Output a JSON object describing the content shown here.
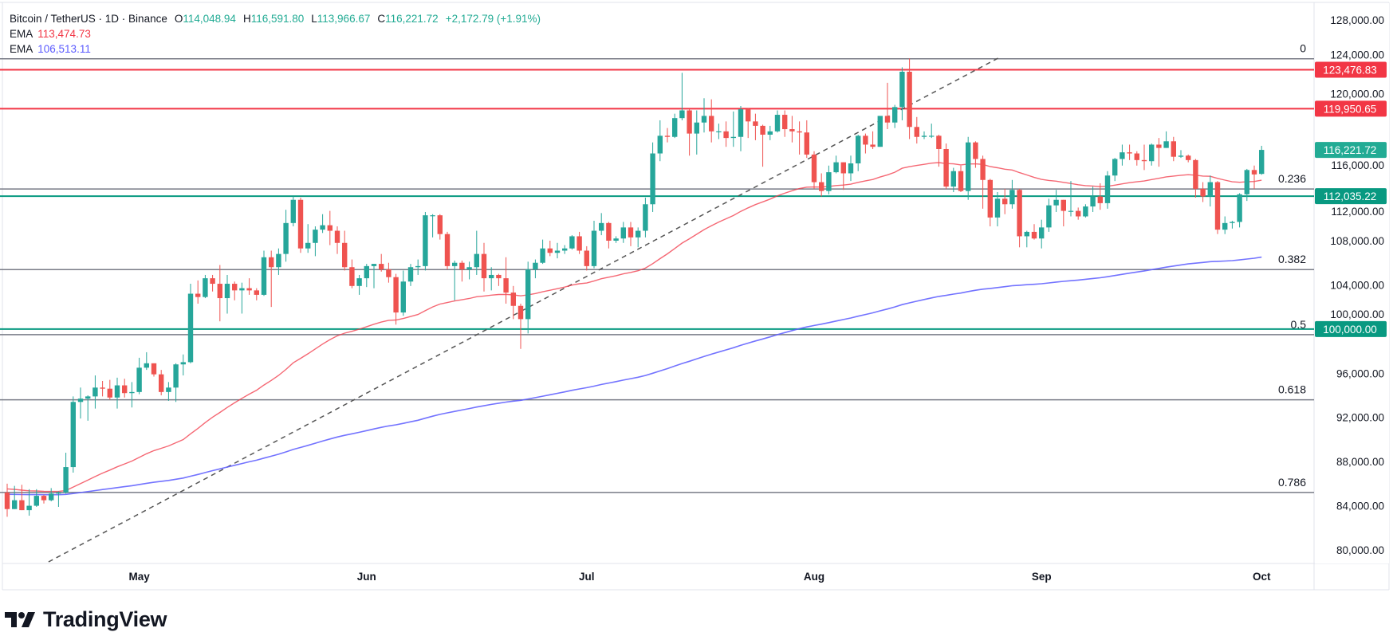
{
  "header": {
    "symbol": "Bitcoin / TetherUS · 1D · Binance",
    "o_label": "O",
    "o": "114,048.94",
    "h_label": "H",
    "h": "116,591.80",
    "l_label": "L",
    "l": "113,966.67",
    "c_label": "C",
    "c": "116,221.72",
    "change": "+2,172.79 (+1.91%)"
  },
  "indicators": [
    {
      "label": "EMA",
      "value": "113,474.73",
      "color": "#f23645"
    },
    {
      "label": "EMA",
      "value": "106,513.11",
      "color": "#5b5bff"
    }
  ],
  "colors": {
    "up": "#26a69a",
    "down": "#ef5350",
    "value_text": "#22ab94",
    "fib": "#787b86",
    "trend": "#555555"
  },
  "logo": {
    "text": "TradingView"
  },
  "price_axis": {
    "ticks": [
      "128,000.00",
      "124,000.00",
      "120,000.00",
      "116,000.00",
      "112,000.00",
      "108,000.00",
      "104,000.00",
      "100,000.00",
      "96,000.00",
      "92,000.00",
      "88,000.00",
      "84,000.00",
      "80,000.00"
    ]
  },
  "time_axis": {
    "labels": [
      {
        "label": "May",
        "date": "May 1"
      },
      {
        "label": "Jun",
        "date": "Jun 1"
      },
      {
        "label": "Jul",
        "date": "Jul 1"
      },
      {
        "label": "Aug",
        "date": "Aug 1"
      },
      {
        "label": "Sep",
        "date": "Sep 1"
      },
      {
        "label": "Oct",
        "date": "Oct 1"
      }
    ]
  },
  "horizontal_lines": [
    {
      "price": 123476.83,
      "label": "123,476.83",
      "color": "#f23645"
    },
    {
      "price": 119950.65,
      "label": "119,950.65",
      "color": "#f23645"
    },
    {
      "price": 112035.22,
      "label": "112,035.22",
      "color": "#089981"
    },
    {
      "price": 100000,
      "label": "100,000.00",
      "color": "#089981"
    }
  ],
  "last_price": {
    "price": 116221.72,
    "label": "116,221.72",
    "color": "#22ab94"
  },
  "fibonacci": {
    "high": 124474,
    "low": 74508,
    "levels": [
      {
        "level": 0,
        "label": "0"
      },
      {
        "level": 0.236,
        "label": "0.236"
      },
      {
        "level": 0.382,
        "label": "0.382"
      },
      {
        "level": 0.5,
        "label": "0.5"
      },
      {
        "level": 0.618,
        "label": "0.618"
      },
      {
        "level": 0.786,
        "label": "0.786"
      }
    ]
  },
  "trend_line": {
    "from": [
      "Apr 19",
      78900
    ],
    "to": [
      "Aug 26",
      124500
    ],
    "style": "dashed"
  },
  "chart_data": {
    "type": "candlestick",
    "ylim": [
      79000,
      129000
    ],
    "grid": false,
    "columns": [
      "date",
      "open",
      "high",
      "low",
      "close"
    ],
    "ema_series": [
      {
        "name": "EMA",
        "last": 113474.73,
        "color": "#f23645"
      },
      {
        "name": "EMA",
        "last": 106513.11,
        "color": "#5b5bff"
      }
    ],
    "candles": [
      [
        "Apr 13",
        85200,
        86000,
        83000,
        83700
      ],
      [
        "Apr 14",
        83700,
        85800,
        83700,
        84500
      ],
      [
        "Apr 15",
        84500,
        85900,
        83600,
        83600
      ],
      [
        "Apr 16",
        83600,
        85500,
        83100,
        84000
      ],
      [
        "Apr 17",
        84000,
        85500,
        83900,
        84900
      ],
      [
        "Apr 18",
        84900,
        85000,
        84200,
        84500
      ],
      [
        "Apr 19",
        84500,
        85600,
        84400,
        85100
      ],
      [
        "Apr 20",
        85100,
        85300,
        83900,
        85200
      ],
      [
        "Apr 21",
        85200,
        88800,
        85100,
        87500
      ],
      [
        "Apr 22",
        87500,
        93900,
        87000,
        93400
      ],
      [
        "Apr 23",
        93400,
        94700,
        91900,
        93700
      ],
      [
        "Apr 24",
        93700,
        94000,
        91700,
        93900
      ],
      [
        "Apr 25",
        93900,
        95800,
        92800,
        94700
      ],
      [
        "Apr 26",
        94700,
        95300,
        93900,
        94600
      ],
      [
        "Apr 27",
        94600,
        95400,
        93600,
        93800
      ],
      [
        "Apr 28",
        93800,
        95600,
        92800,
        94900
      ],
      [
        "Apr 29",
        94900,
        95500,
        93800,
        94200
      ],
      [
        "Apr 30",
        94200,
        95200,
        92900,
        94300
      ],
      [
        "May 1",
        94300,
        97400,
        94100,
        96500
      ],
      [
        "May 2",
        96500,
        97900,
        96300,
        96900
      ],
      [
        "May 3",
        96900,
        96900,
        95700,
        95900
      ],
      [
        "May 4",
        95900,
        96300,
        94000,
        94300
      ],
      [
        "May 5",
        94300,
        95200,
        93500,
        94700
      ],
      [
        "May 6",
        94700,
        96900,
        93400,
        96800
      ],
      [
        "May 7",
        96800,
        97700,
        95800,
        97000
      ],
      [
        "May 8",
        97000,
        104100,
        96900,
        103200
      ],
      [
        "May 9",
        103200,
        104400,
        102300,
        102900
      ],
      [
        "May 10",
        102900,
        104900,
        102800,
        104600
      ],
      [
        "May 11",
        104600,
        104900,
        103400,
        104100
      ],
      [
        "May 12",
        104100,
        105800,
        100700,
        102800
      ],
      [
        "May 13",
        102800,
        104900,
        101400,
        104100
      ],
      [
        "May 14",
        104100,
        104300,
        102600,
        103500
      ],
      [
        "May 15",
        103500,
        104200,
        101400,
        103700
      ],
      [
        "May 16",
        103700,
        104600,
        103100,
        103500
      ],
      [
        "May 17",
        103500,
        103700,
        102600,
        103100
      ],
      [
        "May 18",
        103100,
        107100,
        103000,
        106500
      ],
      [
        "May 19",
        106500,
        107100,
        102000,
        105600
      ],
      [
        "May 20",
        105600,
        107300,
        104900,
        106800
      ],
      [
        "May 21",
        106800,
        110800,
        106100,
        109600
      ],
      [
        "May 22",
        109600,
        112000,
        109300,
        111700
      ],
      [
        "May 23",
        111700,
        111900,
        106900,
        107300
      ],
      [
        "May 24",
        107300,
        109500,
        106900,
        107800
      ],
      [
        "May 25",
        107800,
        109300,
        106600,
        109000
      ],
      [
        "May 26",
        109000,
        110400,
        108700,
        109400
      ],
      [
        "May 27",
        109400,
        110700,
        107600,
        108900
      ],
      [
        "May 28",
        108900,
        109300,
        106800,
        107800
      ],
      [
        "May 29",
        107800,
        108900,
        105300,
        105600
      ],
      [
        "May 30",
        105600,
        106300,
        103700,
        103900
      ],
      [
        "May 31",
        103900,
        104900,
        103100,
        104600
      ],
      [
        "Jun 1",
        104600,
        105900,
        103800,
        105700
      ],
      [
        "Jun 2",
        105700,
        105900,
        103700,
        105900
      ],
      [
        "Jun 3",
        105900,
        106800,
        105200,
        105400
      ],
      [
        "Jun 4",
        105400,
        106000,
        104200,
        104700
      ],
      [
        "Jun 5",
        104700,
        105000,
        100400,
        101500
      ],
      [
        "Jun 6",
        101500,
        105300,
        101200,
        104300
      ],
      [
        "Jun 7",
        104300,
        105900,
        103900,
        105600
      ],
      [
        "Jun 8",
        105600,
        106300,
        104900,
        105700
      ],
      [
        "Jun 9",
        105700,
        110600,
        105300,
        110300
      ],
      [
        "Jun 10",
        110300,
        110400,
        108300,
        110300
      ],
      [
        "Jun 11",
        110300,
        110400,
        108100,
        108600
      ],
      [
        "Jun 12",
        108600,
        108800,
        105400,
        105700
      ],
      [
        "Jun 13",
        105700,
        106200,
        102600,
        106000
      ],
      [
        "Jun 14",
        106000,
        106200,
        104300,
        105400
      ],
      [
        "Jun 15",
        105400,
        106100,
        104500,
        105600
      ],
      [
        "Jun 16",
        105600,
        108900,
        104900,
        106800
      ],
      [
        "Jun 17",
        106800,
        107800,
        103400,
        104600
      ],
      [
        "Jun 18",
        104600,
        105600,
        103500,
        104900
      ],
      [
        "Jun 19",
        104900,
        105000,
        103900,
        104600
      ],
      [
        "Jun 20",
        104600,
        106500,
        102300,
        103300
      ],
      [
        "Jun 21",
        103300,
        103900,
        100900,
        102100
      ],
      [
        "Jun 22",
        102100,
        102300,
        98200,
        100900
      ],
      [
        "Jun 23",
        100900,
        106100,
        99600,
        105400
      ],
      [
        "Jun 24",
        105400,
        106300,
        104600,
        106000
      ],
      [
        "Jun 25",
        106000,
        108100,
        105900,
        107300
      ],
      [
        "Jun 26",
        107300,
        108000,
        106600,
        106900
      ],
      [
        "Jun 27",
        106900,
        107800,
        106400,
        107100
      ],
      [
        "Jun 28",
        107100,
        107600,
        106800,
        107300
      ],
      [
        "Jun 29",
        107300,
        108500,
        107200,
        108400
      ],
      [
        "Jun 30",
        108400,
        108800,
        106800,
        107100
      ],
      [
        "Jul 1",
        107100,
        107500,
        105300,
        105700
      ],
      [
        "Jul 2",
        105700,
        109800,
        105500,
        108900
      ],
      [
        "Jul 3",
        108900,
        110500,
        108500,
        109600
      ],
      [
        "Jul 4",
        109600,
        109700,
        107300,
        108000
      ],
      [
        "Jul 5",
        108000,
        108400,
        107800,
        108200
      ],
      [
        "Jul 6",
        108200,
        109700,
        107800,
        109200
      ],
      [
        "Jul 7",
        109200,
        109700,
        107500,
        108300
      ],
      [
        "Jul 8",
        108300,
        109200,
        107400,
        108900
      ],
      [
        "Jul 9",
        108900,
        111900,
        108300,
        111300
      ],
      [
        "Jul 10",
        111300,
        116900,
        110600,
        115900
      ],
      [
        "Jul 11",
        115900,
        118900,
        115200,
        117500
      ],
      [
        "Jul 12",
        117500,
        118200,
        116900,
        117400
      ],
      [
        "Jul 13",
        117400,
        119500,
        117300,
        119100
      ],
      [
        "Jul 14",
        119100,
        123200,
        118900,
        119800
      ],
      [
        "Jul 15",
        119800,
        119900,
        115700,
        117700
      ],
      [
        "Jul 16",
        117700,
        119800,
        115800,
        118700
      ],
      [
        "Jul 17",
        118700,
        120900,
        117800,
        119300
      ],
      [
        "Jul 18",
        119300,
        120800,
        116900,
        117900
      ],
      [
        "Jul 19",
        117900,
        118600,
        117200,
        117900
      ],
      [
        "Jul 20",
        117900,
        118800,
        116500,
        117300
      ],
      [
        "Jul 21",
        117300,
        119700,
        116500,
        117400
      ],
      [
        "Jul 22",
        117400,
        120200,
        116100,
        119900
      ],
      [
        "Jul 23",
        119900,
        120000,
        117300,
        118800
      ],
      [
        "Jul 24",
        118800,
        119500,
        117100,
        118400
      ],
      [
        "Jul 25",
        118400,
        118500,
        114700,
        117600
      ],
      [
        "Jul 26",
        117600,
        118400,
        117100,
        117900
      ],
      [
        "Jul 27",
        117900,
        119800,
        117800,
        119400
      ],
      [
        "Jul 28",
        119400,
        119800,
        117400,
        118100
      ],
      [
        "Jul 29",
        118100,
        119300,
        116900,
        117900
      ],
      [
        "Jul 30",
        117900,
        118800,
        115800,
        117800
      ],
      [
        "Jul 31",
        117800,
        118900,
        115500,
        115800
      ],
      [
        "Aug 1",
        115800,
        116100,
        112700,
        113300
      ],
      [
        "Aug 2",
        113300,
        114100,
        112000,
        112500
      ],
      [
        "Aug 3",
        112500,
        114800,
        112200,
        114200
      ],
      [
        "Aug 4",
        114200,
        115700,
        114100,
        115100
      ],
      [
        "Aug 5",
        115100,
        115100,
        112600,
        114100
      ],
      [
        "Aug 6",
        114100,
        115700,
        113400,
        115000
      ],
      [
        "Aug 7",
        115000,
        117600,
        114300,
        117500
      ],
      [
        "Aug 8",
        117500,
        117700,
        115900,
        116700
      ],
      [
        "Aug 9",
        116700,
        117900,
        116300,
        116500
      ],
      [
        "Aug 10",
        116500,
        119300,
        116500,
        119300
      ],
      [
        "Aug 11",
        119300,
        122300,
        118100,
        118700
      ],
      [
        "Aug 12",
        118700,
        120300,
        118200,
        120100
      ],
      [
        "Aug 13",
        120100,
        123700,
        118900,
        123300
      ],
      [
        "Aug 14",
        123300,
        124500,
        117200,
        118300
      ],
      [
        "Aug 15",
        118300,
        119200,
        116800,
        117400
      ],
      [
        "Aug 16",
        117400,
        117900,
        117200,
        117500
      ],
      [
        "Aug 17",
        117500,
        118600,
        117300,
        117500
      ],
      [
        "Aug 18",
        117500,
        117600,
        114700,
        116300
      ],
      [
        "Aug 19",
        116300,
        116800,
        112700,
        112900
      ],
      [
        "Aug 20",
        112900,
        114600,
        112400,
        114300
      ],
      [
        "Aug 21",
        114300,
        114800,
        112400,
        112500
      ],
      [
        "Aug 22",
        112500,
        117400,
        111700,
        116900
      ],
      [
        "Aug 23",
        116900,
        117000,
        114600,
        115400
      ],
      [
        "Aug 24",
        115400,
        115700,
        110900,
        113500
      ],
      [
        "Aug 25",
        113500,
        113600,
        109300,
        110100
      ],
      [
        "Aug 26",
        110100,
        112400,
        109300,
        111800
      ],
      [
        "Aug 27",
        111800,
        112700,
        110400,
        111300
      ],
      [
        "Aug 28",
        111300,
        113500,
        110900,
        112600
      ],
      [
        "Aug 29",
        112600,
        112700,
        107400,
        108400
      ],
      [
        "Aug 30",
        108400,
        108900,
        107400,
        108800
      ],
      [
        "Aug 31",
        108800,
        109500,
        108100,
        108200
      ],
      [
        "Sep 1",
        108200,
        109900,
        107300,
        109200
      ],
      [
        "Sep 2",
        109200,
        111800,
        108800,
        111200
      ],
      [
        "Sep 3",
        111200,
        112600,
        110600,
        111700
      ],
      [
        "Sep 4",
        111700,
        111700,
        109300,
        110700
      ],
      [
        "Sep 5",
        110700,
        113400,
        110200,
        110700
      ],
      [
        "Sep 6",
        110700,
        111000,
        109900,
        110200
      ],
      [
        "Sep 7",
        110200,
        111300,
        110100,
        111100
      ],
      [
        "Sep 8",
        111100,
        112900,
        110600,
        112000
      ],
      [
        "Sep 9",
        112000,
        113200,
        110800,
        111400
      ],
      [
        "Sep 10",
        111400,
        114300,
        110900,
        113900
      ],
      [
        "Sep 11",
        113900,
        115500,
        113400,
        115400
      ],
      [
        "Sep 12",
        115400,
        116700,
        114800,
        116000
      ],
      [
        "Sep 13",
        116000,
        116700,
        115300,
        115900
      ],
      [
        "Sep 14",
        115900,
        116100,
        114800,
        115300
      ],
      [
        "Sep 15",
        115300,
        116700,
        114400,
        115200
      ],
      [
        "Sep 16",
        115200,
        116800,
        114800,
        116700
      ],
      [
        "Sep 17",
        116700,
        117300,
        114700,
        116400
      ],
      [
        "Sep 18",
        116400,
        117900,
        116400,
        117000
      ],
      [
        "Sep 19",
        117000,
        117400,
        115200,
        115600
      ],
      [
        "Sep 20",
        115600,
        116200,
        115500,
        115700
      ],
      [
        "Sep 21",
        115700,
        115800,
        115100,
        115300
      ],
      [
        "Sep 22",
        115300,
        115400,
        111900,
        112700
      ],
      [
        "Sep 23",
        112700,
        113300,
        111500,
        112000
      ],
      [
        "Sep 24",
        112000,
        113900,
        111100,
        113300
      ],
      [
        "Sep 25",
        113300,
        113400,
        108600,
        109000
      ],
      [
        "Sep 26",
        109000,
        110200,
        108600,
        109600
      ],
      [
        "Sep 27",
        109600,
        109800,
        109100,
        109700
      ],
      [
        "Sep 28",
        109700,
        112300,
        109200,
        112200
      ],
      [
        "Sep 29",
        112200,
        114500,
        111600,
        114400
      ],
      [
        "Sep 30",
        114400,
        114800,
        112700,
        114000
      ],
      [
        "Oct 1",
        114048.94,
        116591.8,
        113966.67,
        116221.72
      ]
    ]
  }
}
